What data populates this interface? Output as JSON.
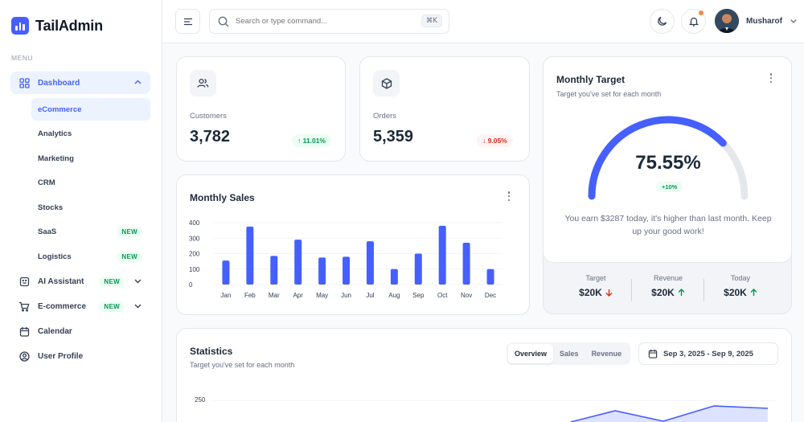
{
  "app": {
    "name": "TailAdmin"
  },
  "sidebar": {
    "menu_label": "MENU",
    "dashboard": {
      "label": "Dashboard",
      "icon": "grid-icon"
    },
    "dashboard_sub": [
      {
        "label": "eCommerce",
        "active": true
      },
      {
        "label": "Analytics"
      },
      {
        "label": "Marketing"
      },
      {
        "label": "CRM"
      },
      {
        "label": "Stocks"
      },
      {
        "label": "SaaS",
        "badge": "NEW"
      },
      {
        "label": "Logistics",
        "badge": "NEW"
      }
    ],
    "items": [
      {
        "label": "AI Assistant",
        "badge": "NEW",
        "icon": "ai-assistant-icon"
      },
      {
        "label": "E-commerce",
        "badge": "NEW",
        "icon": "cart-icon"
      },
      {
        "label": "Calendar",
        "icon": "calendar-icon"
      },
      {
        "label": "User Profile",
        "icon": "user-circle-icon"
      }
    ]
  },
  "header": {
    "search_placeholder": "Search or type command...",
    "shortcut": "⌘K",
    "user_name": "Musharof"
  },
  "metrics": {
    "customers": {
      "label": "Customers",
      "value": "3,782",
      "change": "11.01%",
      "trend": "up"
    },
    "orders": {
      "label": "Orders",
      "value": "5,359",
      "change": "9.05%",
      "trend": "down"
    }
  },
  "monthly_sales": {
    "title": "Monthly Sales"
  },
  "monthly_target": {
    "title": "Monthly Target",
    "subtitle": "Target you've set for each month",
    "percent": "75.55%",
    "percent_value": 75.55,
    "change": "+10%",
    "message": "You earn $3287 today, it's higher than last month. Keep up your good work!",
    "stats": [
      {
        "label": "Target",
        "value": "$20K",
        "trend": "down"
      },
      {
        "label": "Revenue",
        "value": "$20K",
        "trend": "up"
      },
      {
        "label": "Today",
        "value": "$20K",
        "trend": "up"
      }
    ]
  },
  "statistics": {
    "title": "Statistics",
    "subtitle": "Target you've set for each month",
    "tabs": [
      "Overview",
      "Sales",
      "Revenue"
    ],
    "active_tab": "Overview",
    "date_range": "Sep 3, 2025 - Sep 9, 2025",
    "y_tick": "250"
  },
  "colors": {
    "accent": "#465fff",
    "success": "#039855",
    "danger": "#d92d20",
    "track": "#e4e7ec"
  },
  "chart_data": [
    {
      "type": "bar",
      "title": "Monthly Sales",
      "categories": [
        "Jan",
        "Feb",
        "Mar",
        "Apr",
        "May",
        "Jun",
        "Jul",
        "Aug",
        "Sep",
        "Oct",
        "Nov",
        "Dec"
      ],
      "values": [
        155,
        375,
        185,
        290,
        175,
        180,
        280,
        100,
        200,
        380,
        270,
        100
      ],
      "ylim": [
        0,
        400
      ],
      "yticks": [
        0,
        100,
        200,
        300,
        400
      ],
      "xlabel": "",
      "ylabel": "",
      "grid": true
    },
    {
      "type": "area",
      "title": "Statistics",
      "yticks": [
        250
      ]
    }
  ]
}
